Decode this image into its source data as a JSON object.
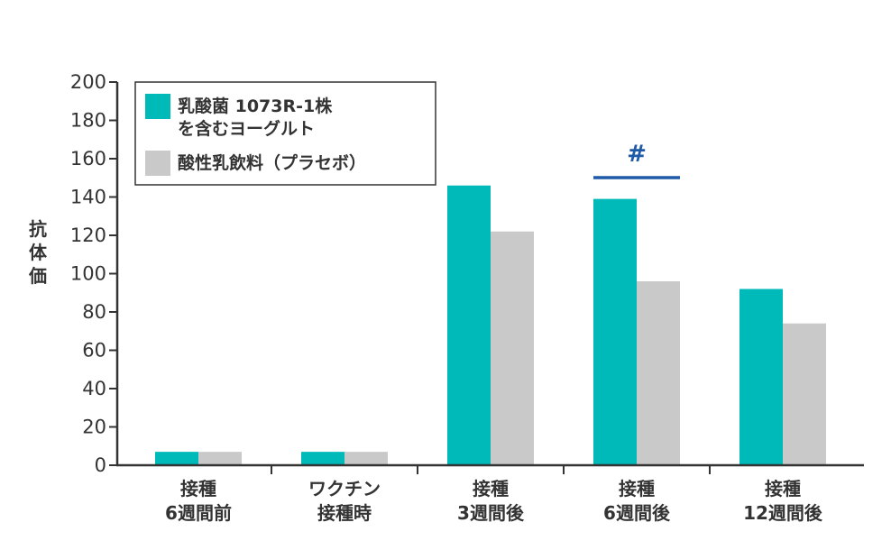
{
  "chart_data": {
    "type": "bar",
    "ylabel": "抗体価",
    "ylim": [
      0,
      200
    ],
    "yticks": [
      0,
      20,
      40,
      60,
      80,
      100,
      120,
      140,
      160,
      180,
      200
    ],
    "grid": false,
    "legend_position": "top-left",
    "categories": [
      [
        "接種",
        "6週間前"
      ],
      [
        "ワクチン",
        "接種時"
      ],
      [
        "接種",
        "3週間後"
      ],
      [
        "接種",
        "6週間後"
      ],
      [
        "接種",
        "12週間後"
      ]
    ],
    "series": [
      {
        "name": [
          "乳酸菌 1073R-1株",
          "を含むヨーグルト"
        ],
        "values": [
          7,
          7,
          146,
          139,
          92
        ]
      },
      {
        "name": [
          "酸性乳飲料（プラセボ）"
        ],
        "values": [
          7,
          7,
          122,
          96,
          74
        ]
      }
    ],
    "annotations": [
      {
        "text": "#",
        "category_index": 3
      }
    ]
  },
  "colors": {
    "series": [
      "#00b9b9",
      "#c9c9c9"
    ],
    "axis": "#333333",
    "annotation": "#1e5aa8"
  }
}
